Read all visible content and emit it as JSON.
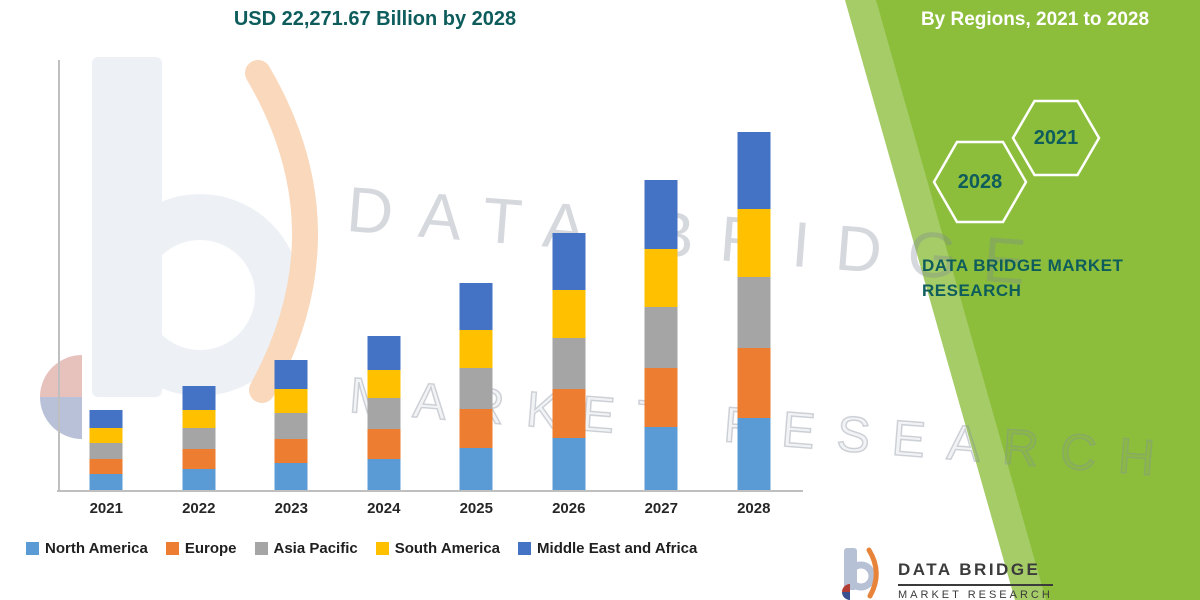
{
  "chart_data": {
    "type": "bar",
    "stacked": true,
    "title": "USD 22,271.67 Billion by 2028",
    "categories": [
      "2021",
      "2022",
      "2023",
      "2024",
      "2025",
      "2026",
      "2027",
      "2028"
    ],
    "series": [
      {
        "name": "North America",
        "color": "#5B9BD5",
        "values": [
          1000,
          1300,
          1650,
          1950,
          2600,
          3250,
          3900,
          4500
        ]
      },
      {
        "name": "Europe",
        "color": "#ED7D31",
        "values": [
          950,
          1250,
          1550,
          1850,
          2450,
          3050,
          3700,
          4300
        ]
      },
      {
        "name": "Asia Pacific",
        "color": "#A5A5A5",
        "values": [
          1000,
          1300,
          1600,
          1900,
          2550,
          3150,
          3800,
          4450
        ]
      },
      {
        "name": "South America",
        "color": "#FFC000",
        "values": [
          900,
          1150,
          1450,
          1750,
          2350,
          2950,
          3550,
          4200
        ]
      },
      {
        "name": "Middle East and Africa",
        "color": "#4472C4",
        "values": [
          1100,
          1450,
          1800,
          2150,
          2900,
          3600,
          4300,
          4821.67
        ]
      }
    ],
    "ylim": [
      0,
      26600
    ],
    "grid": false,
    "legend_position": "bottom",
    "xlabel": "",
    "ylabel": ""
  },
  "side_panel": {
    "heading": "By Regions, 2021 to 2028",
    "hexagon_years": [
      "2028",
      "2021"
    ],
    "brand_line1": "DATA BRIDGE MARKET",
    "brand_line2": "RESEARCH"
  },
  "watermark": {
    "line1": "DATA BRIDGE",
    "line2": "MARKET RESEARCH"
  },
  "footer_logo": {
    "name": "DATA BRIDGE",
    "subtitle": "MARKET RESEARCH"
  },
  "colors": {
    "accent_teal": "#0E5C5C",
    "panel_green": "#8CBE3C",
    "axis_gray": "#BFBFBF"
  }
}
